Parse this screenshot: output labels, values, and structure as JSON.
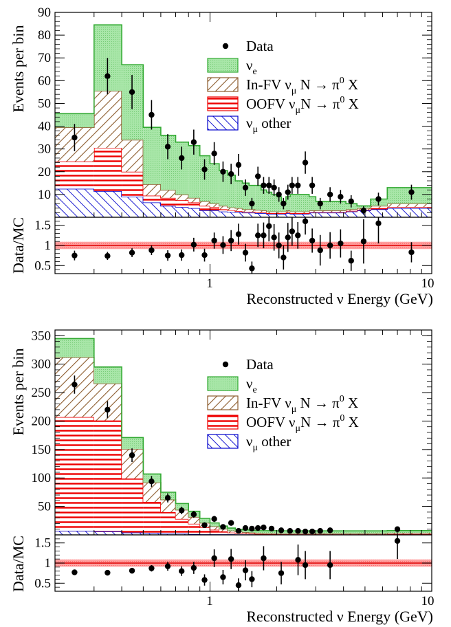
{
  "colors": {
    "nue_fill": "#a8e6a8",
    "nue_line": "#33aa33",
    "infv_hatch": "#8b5a2b",
    "oofv_hatch": "#ee0000",
    "numu_hatch": "#0000cc",
    "data": "#000000",
    "band": "#ff9999"
  },
  "chart_data": [
    {
      "type": "area",
      "panel": "top",
      "stacked": true,
      "xscale": "log",
      "xlim": [
        0.2,
        10
      ],
      "ylim": [
        0,
        90
      ],
      "ratio_ylim": [
        0.3,
        1.7
      ],
      "ylabel": "Events per bin",
      "ratio_ylabel": "Data/MC",
      "xlabel": "Reconstructed ν Energy (GeV)",
      "yticks": [
        10,
        20,
        30,
        40,
        50,
        60,
        70,
        80,
        90
      ],
      "ratio_yticks": [
        "0.5",
        "1",
        "1.5"
      ],
      "xticks": [
        "1",
        "10"
      ],
      "bin_edges": [
        0.2,
        0.3,
        0.4,
        0.5,
        0.6,
        0.7,
        0.8,
        0.9,
        1.0,
        1.1,
        1.2,
        1.3,
        1.4,
        1.5,
        1.6,
        1.7,
        1.8,
        1.9,
        2.0,
        2.1,
        2.2,
        2.3,
        2.4,
        2.6,
        2.8,
        3.0,
        3.3,
        3.7,
        4.1,
        4.6,
        5.3,
        6.3,
        10.0
      ],
      "series": [
        {
          "key": "numu_other",
          "values": [
            12.5,
            11.5,
            9,
            6.5,
            5,
            4.5,
            4,
            3,
            3,
            2.5,
            2.3,
            2.2,
            2,
            2,
            1.8,
            1.8,
            1.5,
            1.5,
            1.5,
            1.5,
            1.8,
            1.5,
            1.5,
            1.5,
            2,
            2,
            2,
            2,
            2.5,
            3,
            3.5,
            4
          ]
        },
        {
          "key": "oofv",
          "values": [
            12,
            19,
            11,
            3,
            3.5,
            3,
            2.5,
            2,
            1.5,
            1,
            0.8,
            0.5,
            0.4,
            0.4,
            0.3,
            0.3,
            0.3,
            0.3,
            0.3,
            0.3,
            0.3,
            0.3,
            0.3,
            0.3,
            0.3,
            0.3,
            0.3,
            0.3,
            0.3,
            0.3,
            0.5,
            0.5
          ]
        },
        {
          "key": "infv",
          "values": [
            15,
            25,
            14,
            5,
            3.5,
            2.5,
            2,
            2,
            1.5,
            1.5,
            1.2,
            1.3,
            1.1,
            1.1,
            1.1,
            0.9,
            0.7,
            0.7,
            0.7,
            0.7,
            0.9,
            0.7,
            0.7,
            0.7,
            0.7,
            0.7,
            0.7,
            0.7,
            0.7,
            0.7,
            1,
            1.5
          ]
        },
        {
          "key": "nue",
          "values": [
            6,
            29,
            33,
            25,
            24,
            23,
            23,
            20,
            17.5,
            15.5,
            14.2,
            12,
            11.5,
            10.5,
            10.8,
            9,
            8.5,
            7.5,
            6.5,
            4.5,
            6,
            7.5,
            7.5,
            7.5,
            6,
            4,
            4,
            4,
            2.5,
            1,
            3,
            7
          ]
        }
      ],
      "data_points": {
        "x": [
          0.245,
          0.345,
          0.445,
          0.545,
          0.645,
          0.745,
          0.845,
          0.945,
          1.045,
          1.145,
          1.245,
          1.345,
          1.445,
          1.545,
          1.645,
          1.745,
          1.845,
          1.945,
          2.045,
          2.145,
          2.245,
          2.345,
          2.49,
          2.69,
          2.89,
          3.14,
          3.48,
          3.88,
          4.33,
          4.93,
          5.75,
          8.1
        ],
        "y": [
          35,
          62,
          55,
          45,
          31,
          26,
          33,
          21,
          28,
          20,
          19,
          23,
          13,
          6,
          18,
          14,
          14,
          13,
          10,
          6,
          11,
          14,
          14,
          24,
          14,
          6,
          10,
          9,
          7,
          3,
          8,
          11
        ],
        "yerr": [
          6,
          8,
          7.5,
          6.5,
          5.5,
          5,
          5.5,
          4.5,
          5,
          4.5,
          4.5,
          4.8,
          3.6,
          2.5,
          4.2,
          3.7,
          3.7,
          3.6,
          3.2,
          2.5,
          3.3,
          3.7,
          3.7,
          4.9,
          3.7,
          2.5,
          3.2,
          3,
          2.7,
          1.8,
          2.8,
          3.3
        ]
      },
      "ratio_points": {
        "y": [
          0.75,
          0.74,
          0.82,
          0.88,
          0.75,
          0.76,
          1.02,
          0.76,
          1.12,
          1.01,
          1.12,
          1.28,
          0.82,
          0.43,
          1.25,
          1.25,
          1.48,
          1.2,
          1.0,
          0.7,
          1.2,
          1.35,
          1.25,
          1.6,
          1.12,
          0.88,
          1.0,
          1.05,
          0.62,
          1.1,
          1.55,
          0.83
        ],
        "yerr": [
          0.12,
          0.1,
          0.11,
          0.12,
          0.13,
          0.14,
          0.17,
          0.16,
          0.2,
          0.22,
          0.26,
          0.26,
          0.22,
          0.17,
          0.29,
          0.32,
          0.38,
          0.33,
          0.32,
          0.3,
          0.36,
          0.36,
          0.33,
          0.33,
          0.3,
          0.38,
          0.33,
          0.35,
          0.25,
          0.55,
          0.5,
          0.25
        ]
      },
      "legend": {
        "position": "upper-right",
        "items": [
          {
            "kind": "data",
            "label": "Data",
            "sub": ""
          },
          {
            "kind": "nue",
            "label": "ν",
            "sub": "e"
          },
          {
            "kind": "infv",
            "label": "In-FV ν",
            "sub": "μ",
            "tail": " N → π",
            "sup": "0",
            "tail2": " X"
          },
          {
            "kind": "oofv",
            "label": "OOFV ν",
            "sub": "μ",
            "tail": "N → π",
            "sup": "0",
            "tail2": " X"
          },
          {
            "kind": "numu",
            "label": "ν",
            "sub": "μ",
            "tail": " other"
          }
        ]
      }
    },
    {
      "type": "area",
      "panel": "bottom",
      "stacked": true,
      "xscale": "log",
      "xlim": [
        0.2,
        10
      ],
      "ylim": [
        0,
        360
      ],
      "ratio_ylim": [
        0.3,
        1.7
      ],
      "ylabel": "Events per bin",
      "ratio_ylabel": "Data/MC",
      "xlabel": "Reconstructed ν Energy (GeV)",
      "yticks": [
        50,
        100,
        150,
        200,
        250,
        300,
        350
      ],
      "ratio_yticks": [
        "0.5",
        "1",
        "1.5"
      ],
      "xticks": [
        "1",
        "10"
      ],
      "bin_edges": [
        0.2,
        0.3,
        0.4,
        0.5,
        0.6,
        0.7,
        0.8,
        0.9,
        1.0,
        1.1,
        1.2,
        1.3,
        1.4,
        1.5,
        1.6,
        1.7,
        1.8,
        2.0,
        2.2,
        2.4,
        2.6,
        2.8,
        3.0,
        3.3,
        3.7,
        4.1,
        4.6,
        5.3,
        6.3,
        10.0
      ],
      "series": [
        {
          "key": "numu_other",
          "values": [
            7,
            6,
            4,
            3,
            2,
            2,
            1.5,
            1,
            1,
            1,
            1,
            0.8,
            0.8,
            0.8,
            0.6,
            0.6,
            0.5,
            0.5,
            0.5,
            0.5,
            0.5,
            0.5,
            0.5,
            0.5,
            0.5,
            0.5,
            0.5,
            0.5,
            0.5
          ]
        },
        {
          "key": "oofv",
          "values": [
            200,
            195,
            95,
            55,
            38,
            26,
            18,
            12,
            8,
            5,
            3,
            2,
            1.5,
            1.2,
            1,
            0.8,
            0.8,
            0.6,
            0.6,
            0.5,
            0.5,
            0.5,
            0.5,
            0.5,
            0.5,
            0.5,
            0.5,
            0.5,
            1
          ]
        },
        {
          "key": "infv",
          "values": [
            105,
            65,
            52,
            34,
            22,
            16,
            12,
            8,
            6,
            4.5,
            3.5,
            3,
            2.5,
            2,
            1.8,
            1.5,
            1.5,
            1.5,
            1.5,
            1.5,
            1.5,
            1.5,
            1.5,
            1.5,
            1.5,
            1.5,
            1.5,
            1.5,
            2
          ]
        },
        {
          "key": "nue",
          "values": [
            33,
            29,
            20,
            15,
            13,
            11,
            10,
            8,
            6,
            5,
            4.5,
            4,
            4,
            4,
            4,
            4.5,
            4.5,
            4.5,
            4.5,
            4.5,
            4.5,
            4.5,
            4.5,
            4.5,
            4.5,
            4.5,
            4.5,
            4.5,
            4
          ]
        }
      ],
      "data_points": {
        "x": [
          0.245,
          0.345,
          0.445,
          0.545,
          0.645,
          0.745,
          0.845,
          0.945,
          1.045,
          1.145,
          1.245,
          1.345,
          1.445,
          1.545,
          1.645,
          1.745,
          1.895,
          2.095,
          2.295,
          2.495,
          2.69,
          2.89,
          3.14,
          3.48,
          7.0
        ],
        "y": [
          264,
          220,
          140,
          94,
          65,
          43,
          36,
          17,
          28,
          14,
          21,
          7,
          12,
          11,
          12,
          13,
          11,
          8,
          7,
          7,
          6,
          6,
          7,
          8,
          10
        ],
        "yerr": [
          16,
          15,
          12,
          9.5,
          8,
          6.6,
          6,
          4.1,
          5.3,
          3.7,
          4.6,
          2.6,
          3.5,
          3.3,
          3.5,
          3.6,
          3.3,
          2.8,
          2.6,
          2.6,
          2.4,
          2.4,
          2.6,
          2.8,
          3.2
        ]
      },
      "ratio_points": {
        "y": [
          0.77,
          0.76,
          0.81,
          0.87,
          0.92,
          0.8,
          0.88,
          0.58,
          1.12,
          0.65,
          1.1,
          0.45,
          0.82,
          0.6,
          1.12,
          0.75,
          1.08,
          0.95,
          0.95,
          1.55
        ],
        "x": [
          0.245,
          0.345,
          0.445,
          0.545,
          0.645,
          0.745,
          0.845,
          0.945,
          1.045,
          1.145,
          1.245,
          1.345,
          1.445,
          1.545,
          1.745,
          2.095,
          2.495,
          2.69,
          3.48,
          7.0
        ],
        "yerr": [
          0.05,
          0.05,
          0.07,
          0.08,
          0.11,
          0.12,
          0.15,
          0.14,
          0.22,
          0.18,
          0.25,
          0.17,
          0.25,
          0.2,
          0.3,
          0.28,
          0.38,
          0.35,
          0.35,
          0.45
        ]
      },
      "legend": {
        "position": "upper-right",
        "items": [
          {
            "kind": "data",
            "label": "Data",
            "sub": ""
          },
          {
            "kind": "nue",
            "label": "ν",
            "sub": "e"
          },
          {
            "kind": "infv",
            "label": "In-FV ν",
            "sub": "μ",
            "tail": " N → π",
            "sup": "0",
            "tail2": " X"
          },
          {
            "kind": "oofv",
            "label": "OOFV ν",
            "sub": "μ",
            "tail": "N → π",
            "sup": "0",
            "tail2": " X"
          },
          {
            "kind": "numu",
            "label": "ν",
            "sub": "μ",
            "tail": " other"
          }
        ]
      }
    }
  ]
}
